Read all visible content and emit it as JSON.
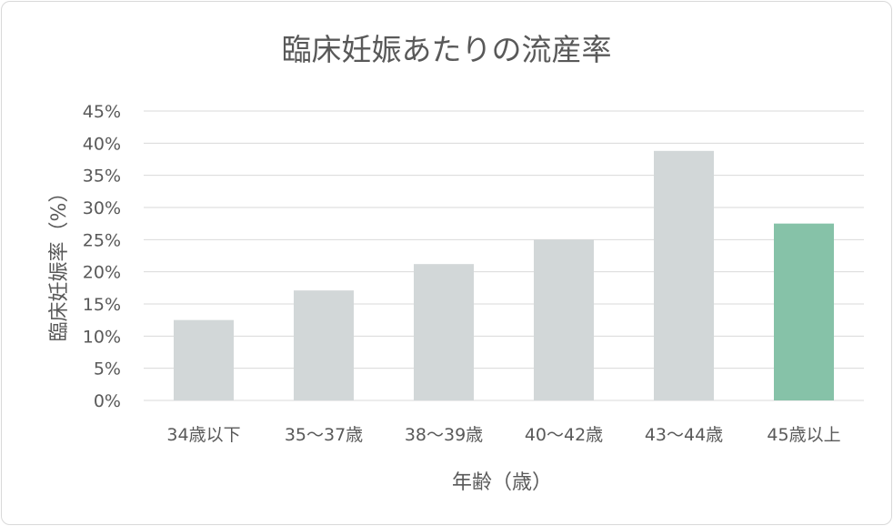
{
  "chart_data": {
    "type": "bar",
    "title": "臨床妊娠あたりの流産率",
    "xlabel": "年齢（歳）",
    "ylabel": "臨床妊娠率（%）",
    "categories": [
      "34歳以下",
      "35～37歳",
      "38～39歳",
      "40～42歳",
      "43～44歳",
      "45歳以上"
    ],
    "values": [
      12.5,
      17.1,
      21.2,
      25.0,
      38.8,
      27.5
    ],
    "ylim": [
      0,
      45
    ],
    "yticks": [
      "0%",
      "5%",
      "10%",
      "15%",
      "20%",
      "25%",
      "30%",
      "35%",
      "40%",
      "45%"
    ],
    "grid": true,
    "legend": "none",
    "colors": {
      "bar": "#d2d7d8",
      "highlight": "#86c2a8",
      "grid": "#d9d9d9",
      "text": "#595959"
    },
    "highlight_index": 5
  }
}
